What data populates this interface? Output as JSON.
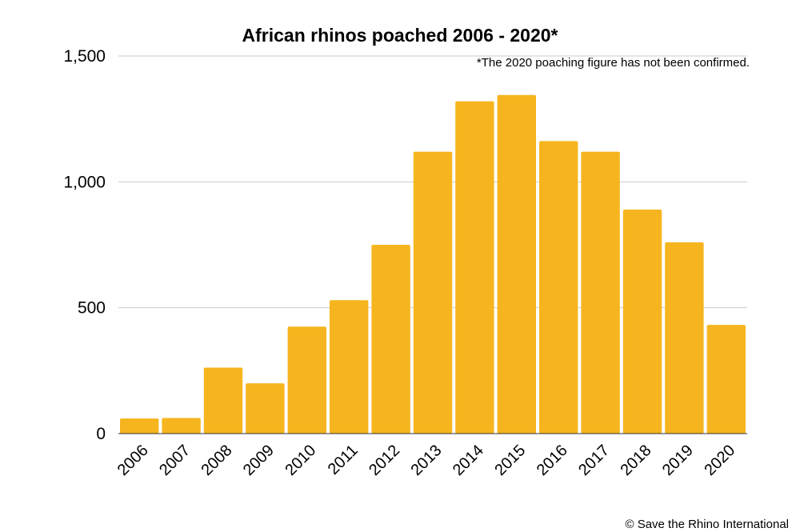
{
  "chart_data": {
    "type": "bar",
    "title": "African rhinos poached 2006 - 2020*",
    "annotation": "*The 2020 poaching figure  has not been confirmed.",
    "credit": "© Save the Rhino International",
    "categories": [
      "2006",
      "2007",
      "2008",
      "2009",
      "2010",
      "2011",
      "2012",
      "2013",
      "2014",
      "2015",
      "2016",
      "2017",
      "2018",
      "2019",
      "2020"
    ],
    "values": [
      60,
      62,
      262,
      200,
      425,
      530,
      750,
      1120,
      1320,
      1345,
      1162,
      1120,
      890,
      760,
      432
    ],
    "ylim": [
      0,
      1500
    ],
    "yticks": [
      0,
      500,
      1000,
      1500
    ],
    "ytick_labels": [
      "0",
      "500",
      "1,000",
      "1,500"
    ],
    "grid": true,
    "legend": "none",
    "colors": {
      "bar": "#f6b51e"
    }
  }
}
